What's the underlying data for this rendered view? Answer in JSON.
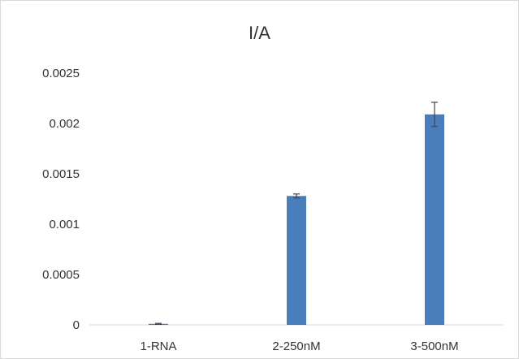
{
  "chart_data": {
    "type": "bar",
    "title": "I/A",
    "xlabel": "",
    "ylabel": "",
    "categories": [
      "1-RNA",
      "2-250nM",
      "3-500nM"
    ],
    "values": [
      1e-05,
      0.00128,
      0.00209
    ],
    "error": [
      5e-06,
      2e-05,
      0.00012
    ],
    "ylim": [
      0,
      0.0025
    ],
    "yticks": [
      0,
      0.0005,
      0.001,
      0.0015,
      0.002,
      0.0025
    ],
    "ytick_labels": [
      "0",
      "0.0005",
      "0.001",
      "0.0015",
      "0.002",
      "0.0025"
    ],
    "bar_color": "#4a7ebb",
    "grid": false,
    "legend": "none"
  }
}
